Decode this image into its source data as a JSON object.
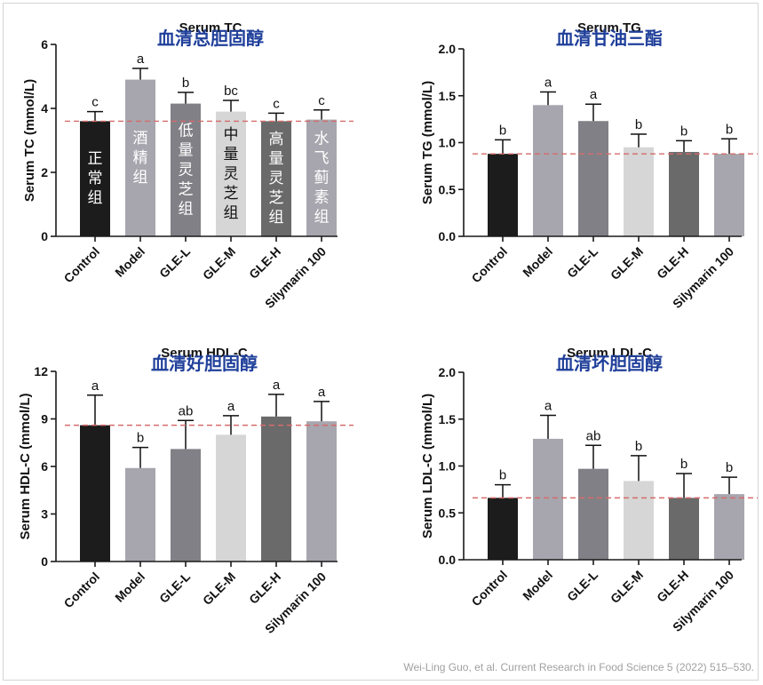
{
  "citation": "Wei-Ling Guo, et al. Current Research in Food Science 5 (2022) 515–530.",
  "colors": {
    "title_cn": "#1f3f9a",
    "reference_line": "#d66b6b",
    "axis": "#1a1a1a",
    "bars": [
      "#1c1c1c",
      "#a7a6ae",
      "#818087",
      "#d6d6d6",
      "#6a6a6a",
      "#a7a6ae"
    ]
  },
  "chart_data": [
    {
      "type": "bar",
      "title": "Serum TC",
      "subtitle": "血清总胆固醇",
      "ylabel": "Serum TC (mmol/L)",
      "xlabel": "",
      "ylim": [
        0,
        6
      ],
      "yticks": [
        "0",
        "2",
        "4",
        "6"
      ],
      "categories": [
        "Control",
        "Model",
        "GLE-L",
        "GLE-M",
        "GLE-H",
        "Silymarin 100"
      ],
      "values": [
        3.6,
        4.9,
        4.15,
        3.9,
        3.6,
        3.65
      ],
      "errors": [
        0.3,
        0.35,
        0.35,
        0.35,
        0.25,
        0.3
      ],
      "letters": [
        "c",
        "a",
        "b",
        "bc",
        "c",
        "c"
      ],
      "bar_labels": [
        "正常组",
        "酒精组",
        "低量灵芝组",
        "中量灵芝组",
        "高量灵芝组",
        "水飞蓟素组"
      ],
      "reference_line": 3.6
    },
    {
      "type": "bar",
      "title": "Serum TG",
      "subtitle": "血清甘油三酯",
      "ylabel": "Serum TG (mmol/L)",
      "xlabel": "",
      "ylim": [
        0,
        2
      ],
      "yticks": [
        "0.0",
        "0.5",
        "1.0",
        "1.5",
        "2.0"
      ],
      "categories": [
        "Control",
        "Model",
        "GLE-L",
        "GLE-M",
        "GLE-H",
        "Silymarin 100"
      ],
      "values": [
        0.88,
        1.4,
        1.23,
        0.95,
        0.9,
        0.88
      ],
      "errors": [
        0.15,
        0.14,
        0.18,
        0.14,
        0.12,
        0.16
      ],
      "letters": [
        "b",
        "a",
        "a",
        "b",
        "b",
        "b"
      ],
      "reference_line": 0.88
    },
    {
      "type": "bar",
      "title": "Serum HDL-C",
      "subtitle": "血清好胆固醇",
      "ylabel": "Serum HDL-C (mmol/L)",
      "xlabel": "",
      "ylim": [
        0,
        12
      ],
      "yticks": [
        "0",
        "3",
        "6",
        "9",
        "12"
      ],
      "categories": [
        "Control",
        "Model",
        "GLE-L",
        "GLE-M",
        "GLE-H",
        "Silymarin 100"
      ],
      "values": [
        8.6,
        5.9,
        7.1,
        8.0,
        9.15,
        8.85
      ],
      "errors": [
        1.9,
        1.3,
        1.8,
        1.2,
        1.4,
        1.25
      ],
      "letters": [
        "a",
        "b",
        "ab",
        "a",
        "a",
        "a"
      ],
      "reference_line": 8.6
    },
    {
      "type": "bar",
      "title": "Serum LDL-C",
      "subtitle": "血清坏胆固醇",
      "ylabel": "Serum LDL-C (mmol/L)",
      "xlabel": "",
      "ylim": [
        0,
        2
      ],
      "yticks": [
        "0.0",
        "0.5",
        "1.0",
        "1.5",
        "2.0"
      ],
      "categories": [
        "Control",
        "Model",
        "GLE-L",
        "GLE-M",
        "GLE-H",
        "Silymarin 100"
      ],
      "values": [
        0.66,
        1.29,
        0.97,
        0.84,
        0.66,
        0.7
      ],
      "errors": [
        0.14,
        0.25,
        0.25,
        0.27,
        0.26,
        0.18
      ],
      "letters": [
        "b",
        "a",
        "ab",
        "b",
        "b",
        "b"
      ],
      "reference_line": 0.66
    }
  ]
}
